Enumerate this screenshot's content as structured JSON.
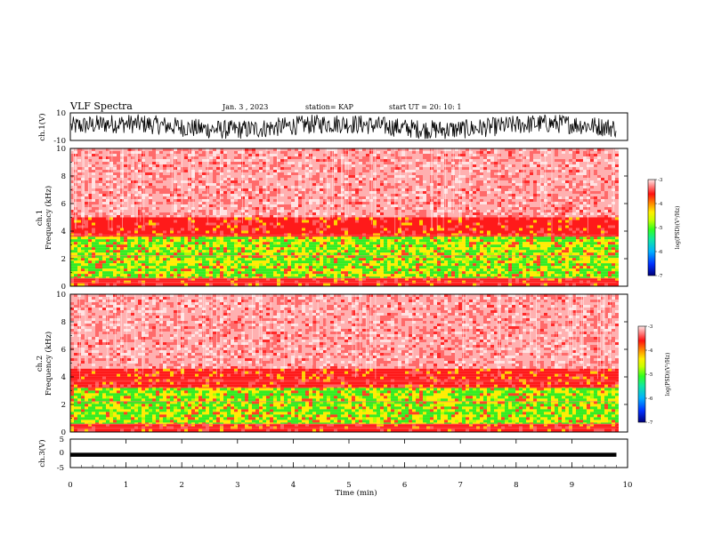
{
  "header": {
    "title": "VLF Spectra",
    "date": "Jan. 3 , 2023",
    "station": "station= KAP",
    "start": "start UT =  20: 10: 1"
  },
  "chart_data": [
    {
      "type": "line",
      "id": "ch1-waveform",
      "ylabel": "ch.1(V)",
      "ylim": [
        -10,
        10
      ],
      "yticks": [
        "10",
        "-10"
      ],
      "description_of_signal": "dense noisy waveform between about -8 and 9 V",
      "color": "#000000"
    },
    {
      "type": "heatmap",
      "id": "ch1-spectrogram",
      "ylabel": "ch.1\nFrequency (kHz)",
      "ylim": [
        0,
        10
      ],
      "yticks": [
        "0",
        "2",
        "4",
        "6",
        "8",
        "10"
      ],
      "xlim": [
        0,
        9.8
      ],
      "bands": [
        {
          "from": 0,
          "to": 0.6,
          "level": "red"
        },
        {
          "from": 0.6,
          "to": 3.6,
          "level": "green-yellow"
        },
        {
          "from": 3.6,
          "to": 5.0,
          "level": "red"
        },
        {
          "from": 5.0,
          "to": 10,
          "level": "light-red"
        }
      ],
      "colorbar": {
        "label": "log(PSD)(V²/Hz)",
        "ticks": [
          "-3",
          "-4",
          "-5",
          "-6",
          "-7"
        ],
        "range": [
          -7,
          -3
        ]
      }
    },
    {
      "type": "heatmap",
      "id": "ch2-spectrogram",
      "ylabel": "ch.2\nFrequency (kHz)",
      "ylim": [
        0,
        10
      ],
      "yticks": [
        "0",
        "2",
        "4",
        "6",
        "8",
        "10"
      ],
      "xlim": [
        0,
        9.8
      ],
      "bands": [
        {
          "from": 0,
          "to": 0.6,
          "level": "red"
        },
        {
          "from": 0.6,
          "to": 3.2,
          "level": "green-yellow"
        },
        {
          "from": 3.2,
          "to": 4.6,
          "level": "red"
        },
        {
          "from": 4.6,
          "to": 10,
          "level": "light-red"
        }
      ],
      "colorbar": {
        "label": "log(PSD)(V²/Hz)",
        "ticks": [
          "-3",
          "-4",
          "-5",
          "-6",
          "-7"
        ],
        "range": [
          -7,
          -3
        ]
      }
    },
    {
      "type": "line",
      "id": "ch3-waveform",
      "ylabel": "ch.3(V)",
      "ylim": [
        -5,
        5
      ],
      "yticks": [
        "5",
        "0",
        "-5"
      ],
      "xlabel": "Time (min)",
      "xticks": [
        "0",
        "1",
        "2",
        "3",
        "4",
        "5",
        "6",
        "7",
        "8",
        "9",
        "10"
      ],
      "xlim": [
        0,
        10
      ],
      "description_of_signal": "flat thick band near -0.5 V",
      "color": "#000000"
    }
  ],
  "colors": {
    "red": "#ff2020",
    "lightred": "#ff9a9a",
    "green": "#33ee22",
    "yellow": "#ffee00",
    "colormap": [
      "#000080",
      "#0040ff",
      "#00c0ff",
      "#20ff40",
      "#ffff00",
      "#ff8000",
      "#ff0000",
      "#ffe0e0"
    ]
  }
}
